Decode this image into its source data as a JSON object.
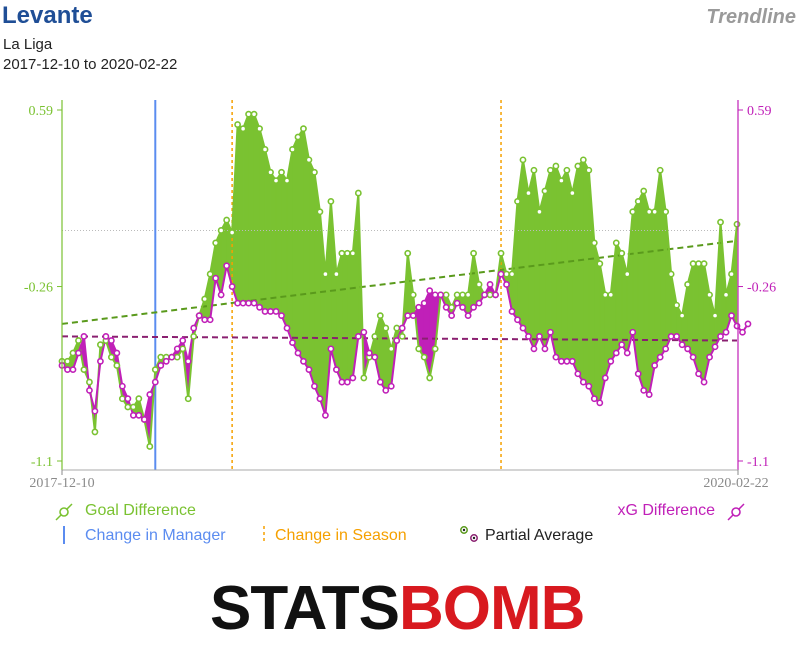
{
  "header": {
    "team": "Levante",
    "competition": "La Liga",
    "date_range": "2017-12-10 to 2020-02-22",
    "view": "Trendline"
  },
  "colors": {
    "goal": "#7ac231",
    "goal_fill": "#7ac231",
    "xg": "#c020b8",
    "xg_fill": "#c020b8",
    "manager": "#5b8cf0",
    "season": "#f5a000",
    "goal_trend": "#5a9a1c",
    "xg_trend": "#8a2070",
    "title": "#1f4e96"
  },
  "legend": {
    "goal_difference": "Goal Difference",
    "xg_difference": "xG Difference",
    "change_in_manager": "Change in Manager",
    "change_in_season": "Change in Season",
    "partial_average": "Partial Average"
  },
  "logo": {
    "part1": "STATS",
    "part2": "BOMB"
  },
  "chart_data": {
    "type": "line",
    "title": "Levante",
    "ylim": [
      -1.1,
      0.59
    ],
    "y_ticks": [
      0.59,
      -0.26,
      -1.1
    ],
    "x_labels": [
      "2017-12-10",
      "2020-02-22"
    ],
    "manager_change_index": 17,
    "season_change_indices": [
      31,
      80
    ],
    "series": [
      {
        "name": "Goal Difference",
        "values": [
          -0.62,
          -0.62,
          -0.58,
          -0.52,
          -0.66,
          -0.72,
          -0.96,
          -0.54,
          -0.52,
          -0.6,
          -0.64,
          -0.8,
          -0.84,
          -0.84,
          -0.8,
          -0.9,
          -1.03,
          -0.66,
          -0.6,
          -0.6,
          -0.6,
          -0.6,
          -0.56,
          -0.8,
          -0.5,
          -0.4,
          -0.32,
          -0.2,
          -0.05,
          0.01,
          0.06,
          0.0,
          0.52,
          0.5,
          0.57,
          0.57,
          0.5,
          0.4,
          0.29,
          0.25,
          0.29,
          0.25,
          0.4,
          0.46,
          0.5,
          0.35,
          0.29,
          0.1,
          -0.2,
          0.15,
          -0.2,
          -0.1,
          -0.1,
          -0.1,
          0.19,
          -0.7,
          -0.6,
          -0.5,
          -0.4,
          -0.46,
          -0.56,
          -0.46,
          -0.5,
          -0.1,
          -0.3,
          -0.56,
          -0.6,
          -0.7,
          -0.56,
          -0.3,
          -0.3,
          -0.36,
          -0.3,
          -0.3,
          -0.3,
          -0.1,
          -0.25,
          -0.3,
          -0.3,
          -0.3,
          -0.1,
          -0.2,
          -0.2,
          0.15,
          0.35,
          0.19,
          0.3,
          0.1,
          0.2,
          0.3,
          0.32,
          0.25,
          0.3,
          0.19,
          0.32,
          0.35,
          0.3,
          -0.05,
          -0.15,
          -0.3,
          -0.3,
          -0.05,
          -0.1,
          -0.2,
          0.1,
          0.15,
          0.2,
          0.1,
          0.1,
          0.3,
          0.1,
          -0.2,
          -0.35,
          -0.4,
          -0.25,
          -0.15,
          -0.15,
          -0.15,
          -0.3,
          -0.4,
          0.05,
          -0.3,
          -0.2,
          0.04
        ],
        "color": "#7ac231"
      },
      {
        "name": "xG Difference",
        "values": [
          -0.64,
          -0.66,
          -0.66,
          -0.58,
          -0.5,
          -0.76,
          -0.86,
          -0.62,
          -0.5,
          -0.52,
          -0.58,
          -0.74,
          -0.8,
          -0.88,
          -0.88,
          -0.9,
          -0.78,
          -0.72,
          -0.64,
          -0.62,
          -0.6,
          -0.56,
          -0.52,
          -0.62,
          -0.46,
          -0.4,
          -0.42,
          -0.42,
          -0.22,
          -0.3,
          -0.16,
          -0.26,
          -0.34,
          -0.34,
          -0.34,
          -0.34,
          -0.36,
          -0.38,
          -0.38,
          -0.38,
          -0.4,
          -0.46,
          -0.53,
          -0.58,
          -0.62,
          -0.66,
          -0.74,
          -0.8,
          -0.88,
          -0.56,
          -0.66,
          -0.72,
          -0.72,
          -0.7,
          -0.5,
          -0.48,
          -0.58,
          -0.6,
          -0.72,
          -0.76,
          -0.74,
          -0.52,
          -0.46,
          -0.4,
          -0.4,
          -0.36,
          -0.34,
          -0.28,
          -0.3,
          -0.3,
          -0.36,
          -0.4,
          -0.34,
          -0.36,
          -0.4,
          -0.36,
          -0.34,
          -0.3,
          -0.25,
          -0.3,
          -0.2,
          -0.25,
          -0.38,
          -0.42,
          -0.46,
          -0.5,
          -0.56,
          -0.5,
          -0.56,
          -0.48,
          -0.6,
          -0.62,
          -0.62,
          -0.62,
          -0.68,
          -0.72,
          -0.74,
          -0.8,
          -0.82,
          -0.7,
          -0.62,
          -0.58,
          -0.54,
          -0.58,
          -0.48,
          -0.68,
          -0.76,
          -0.78,
          -0.64,
          -0.6,
          -0.56,
          -0.5,
          -0.5,
          -0.54,
          -0.56,
          -0.6,
          -0.68,
          -0.72,
          -0.6,
          -0.55,
          -0.5,
          -0.48,
          -0.4,
          -0.45,
          -0.48,
          -0.44
        ],
        "color": "#c020b8"
      }
    ],
    "trendlines": [
      {
        "name": "Goal Difference trend",
        "start": -0.44,
        "end": -0.04
      },
      {
        "name": "xG Difference trend",
        "start": -0.5,
        "end": -0.52
      }
    ],
    "reference_lines": [
      {
        "name": "Partial average (dotted)",
        "value": 0.01
      }
    ]
  }
}
